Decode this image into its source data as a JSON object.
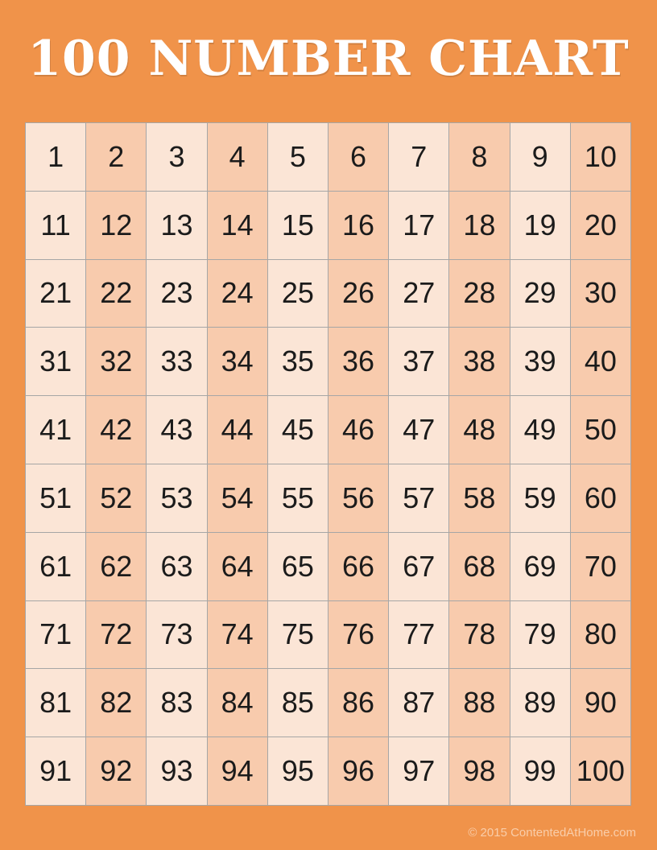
{
  "title": {
    "text": "100 NUMBER CHART"
  },
  "colors": {
    "background": "#F0934A",
    "cell_light": "#FBE5D6",
    "cell_dark": "#F8CBAD",
    "grid_border": "#A6A6A6",
    "number": "#1B1B1B",
    "title": "#FFFFFF"
  },
  "grid": {
    "rows": [
      [
        1,
        2,
        3,
        4,
        5,
        6,
        7,
        8,
        9,
        10
      ],
      [
        11,
        12,
        13,
        14,
        15,
        16,
        17,
        18,
        19,
        20
      ],
      [
        21,
        22,
        23,
        24,
        25,
        26,
        27,
        28,
        29,
        30
      ],
      [
        31,
        32,
        33,
        34,
        35,
        36,
        37,
        38,
        39,
        40
      ],
      [
        41,
        42,
        43,
        44,
        45,
        46,
        47,
        48,
        49,
        50
      ],
      [
        51,
        52,
        53,
        54,
        55,
        56,
        57,
        58,
        59,
        60
      ],
      [
        61,
        62,
        63,
        64,
        65,
        66,
        67,
        68,
        69,
        70
      ],
      [
        71,
        72,
        73,
        74,
        75,
        76,
        77,
        78,
        79,
        80
      ],
      [
        81,
        82,
        83,
        84,
        85,
        86,
        87,
        88,
        89,
        90
      ],
      [
        91,
        92,
        93,
        94,
        95,
        96,
        97,
        98,
        99,
        100
      ]
    ]
  },
  "footer": {
    "copyright": "© 2015 ContentedAtHome.com"
  }
}
